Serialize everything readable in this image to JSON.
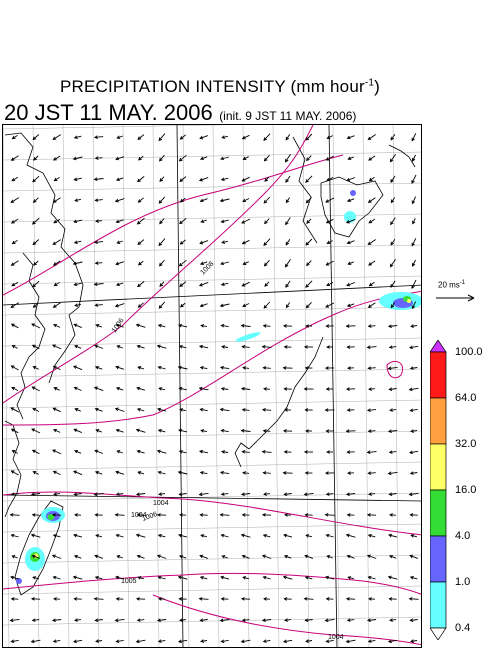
{
  "title": {
    "main": "PRECIPITATION INTENSITY (mm hour",
    "unit_exponent": "-1",
    "main_close": ")",
    "valid_time": "20 JST 11 MAY. 2006",
    "init_time": "(init. 9 JST 11 MAY. 2006)"
  },
  "wind_reference": {
    "label": "20 ms",
    "exponent": "-1"
  },
  "isobar_labels": [
    "1008",
    "1006",
    "1004",
    "1006",
    "1004",
    "1005",
    "1004"
  ],
  "colorbar": {
    "levels": [
      "100.0",
      "64.0",
      "32.0",
      "16.0",
      "4.0",
      "1.0",
      "0.4"
    ],
    "colors": {
      "over": "#cc33ff",
      "band_64_100": "#ff1a1a",
      "band_32_64": "#ffa040",
      "band_16_32": "#ffff66",
      "band_4_16": "#33dd33",
      "band_1_4": "#6666ff",
      "band_04_1": "#66ffff",
      "under": "#ffffff"
    }
  },
  "colors": {
    "isobar": "#c8007a",
    "grid": "#999999",
    "coast": "#000000",
    "arrow": "#000000"
  }
}
